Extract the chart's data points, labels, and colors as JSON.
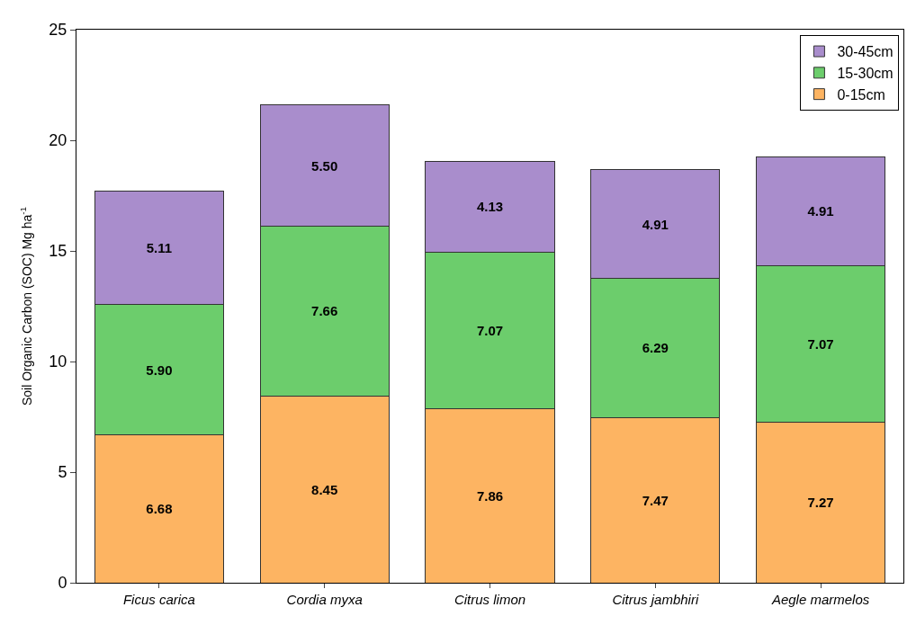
{
  "chart_data": {
    "type": "bar",
    "stacked": true,
    "ylabel": "Soil Organic Carbon (SOC) Mg ha$^{-1}$",
    "categories": [
      "Ficus carica",
      "Cordia myxa",
      "Citrus limon",
      "Citrus jambhiri",
      "Aegle marmelos"
    ],
    "series": [
      {
        "name": "0-15cm",
        "color": "#fdb462",
        "values": [
          6.68,
          8.45,
          7.86,
          7.47,
          7.27
        ],
        "value_labels": [
          "6.68",
          "8.45",
          "7.86",
          "7.47",
          "7.27"
        ]
      },
      {
        "name": "15-30cm",
        "color": "#6ccd6c",
        "values": [
          5.9,
          7.66,
          7.07,
          6.29,
          7.07
        ],
        "value_labels": [
          "5.90",
          "7.66",
          "7.07",
          "6.29",
          "7.07"
        ]
      },
      {
        "name": "30-45cm",
        "color": "#a98dcc",
        "values": [
          5.11,
          5.5,
          4.13,
          4.91,
          4.91
        ],
        "value_labels": [
          "5.11",
          "5.50",
          "4.13",
          "4.91",
          "4.91"
        ]
      }
    ],
    "ylim": [
      0,
      25
    ],
    "yticks": [
      0,
      5,
      10,
      15,
      20,
      25
    ],
    "legend": "top right"
  }
}
